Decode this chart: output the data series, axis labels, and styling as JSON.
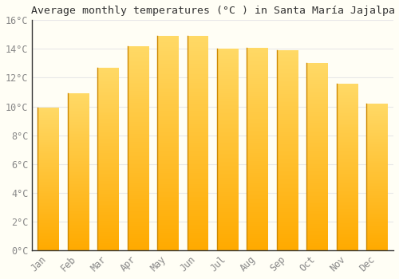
{
  "months": [
    "Jan",
    "Feb",
    "Mar",
    "Apr",
    "May",
    "Jun",
    "Jul",
    "Aug",
    "Sep",
    "Oct",
    "Nov",
    "Dec"
  ],
  "values": [
    9.9,
    10.9,
    12.7,
    14.2,
    14.9,
    14.9,
    14.0,
    14.1,
    13.9,
    13.0,
    11.6,
    10.2
  ],
  "title": "Average monthly temperatures (°C ) in Santa María Jajalpa",
  "bar_color_bottom": "#FFAA00",
  "bar_color_top": "#FFD966",
  "ylim": [
    0,
    16
  ],
  "yticks": [
    0,
    2,
    4,
    6,
    8,
    10,
    12,
    14,
    16
  ],
  "ylabel_suffix": "°C",
  "background_color": "#FFFEF5",
  "grid_color": "#E8E8E8",
  "title_fontsize": 9.5,
  "tick_fontsize": 8.5,
  "font_family": "monospace",
  "tick_color": "#888888",
  "spine_color": "#333333",
  "bar_edge_color": "#CC8800",
  "bar_width": 0.72
}
